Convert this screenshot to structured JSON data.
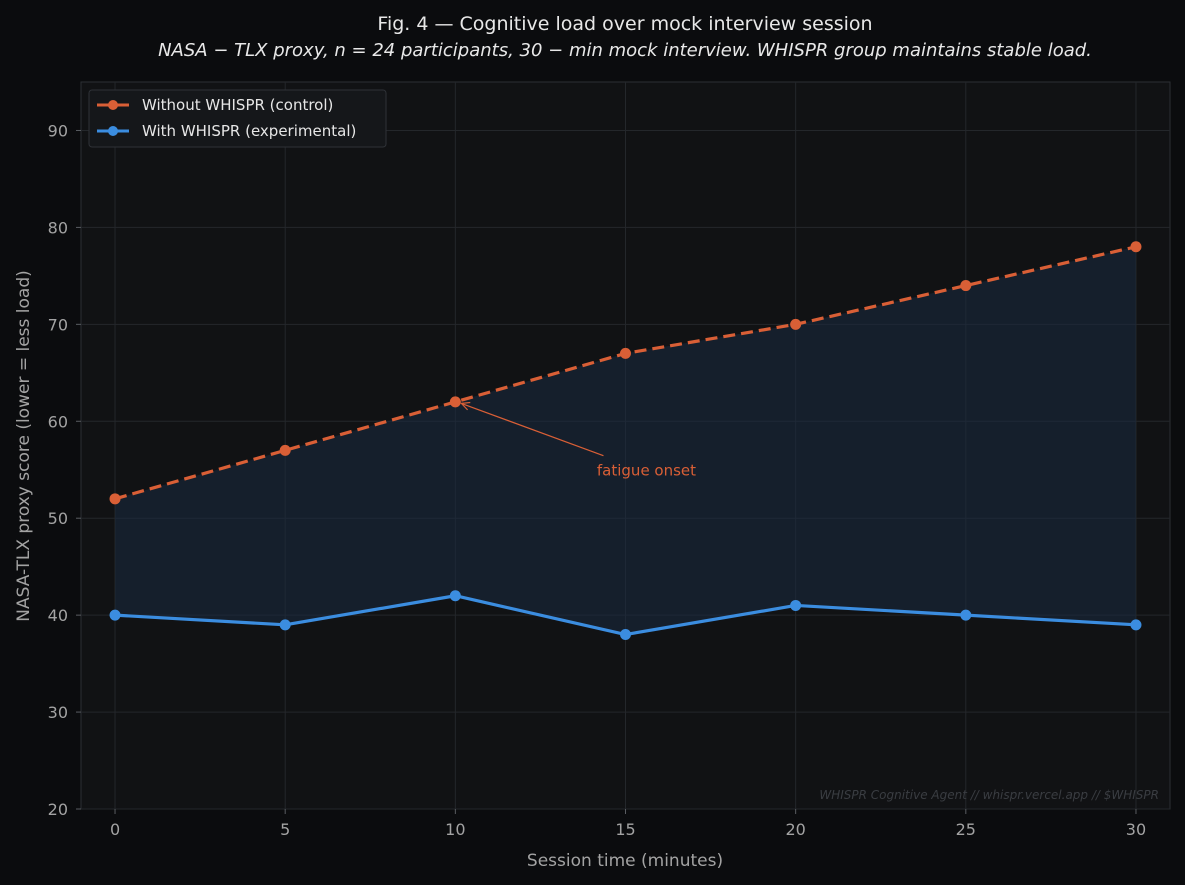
{
  "chart_data": {
    "type": "line",
    "title": "Fig. 4 — Cognitive load over mock interview session",
    "subtitle": "NASA − TLX proxy,  n = 24 participants,  30 − min mock interview.  WHISPR group maintains stable load.",
    "xlabel": "Session time (minutes)",
    "ylabel": "NASA-TLX proxy score (lower = less load)",
    "x": [
      0,
      5,
      10,
      15,
      20,
      25,
      30
    ],
    "xlim": [
      -1,
      31
    ],
    "ylim": [
      20,
      95
    ],
    "xticks": [
      0,
      5,
      10,
      15,
      20,
      25,
      30
    ],
    "yticks": [
      20,
      30,
      40,
      50,
      60,
      70,
      80,
      90
    ],
    "grid": true,
    "legend_position": "top-left",
    "series": [
      {
        "name": "Without WHISPR (control)",
        "values": [
          52,
          57,
          62,
          67,
          70,
          74,
          78
        ],
        "color": "#d95f36",
        "style": "dashed"
      },
      {
        "name": "With WHISPR (experimental)",
        "values": [
          40,
          39,
          42,
          38,
          41,
          40,
          39
        ],
        "color": "#3b8de0",
        "style": "solid"
      }
    ],
    "fill_between": {
      "color": "#1a2a40"
    },
    "annotation": {
      "text": "fatigue onset",
      "point": [
        10,
        62
      ],
      "text_at": [
        14,
        55
      ],
      "color": "#d95f36"
    },
    "watermark": "WHISPR Cognitive Agent // whispr.vercel.app // $WHISPR"
  }
}
